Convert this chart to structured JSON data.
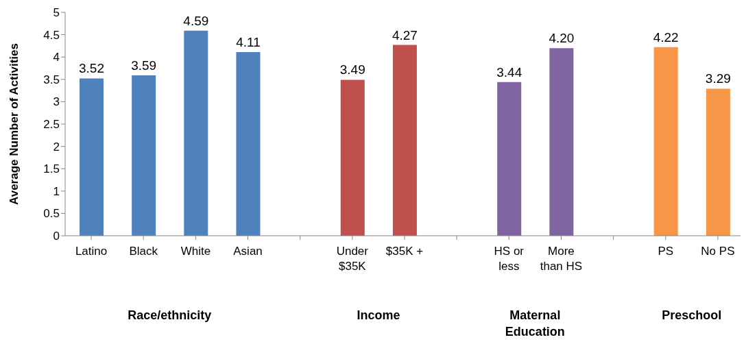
{
  "chart_data": {
    "type": "bar",
    "ylabel": "Average Number of Activities",
    "categories": [
      "Latino",
      "Black",
      "White",
      "Asian",
      null,
      "Under $35K",
      "$35K +",
      null,
      "HS or less",
      "More than HS",
      null,
      "PS",
      "No PS"
    ],
    "values": [
      3.52,
      3.59,
      4.59,
      4.11,
      null,
      3.49,
      4.27,
      null,
      3.44,
      4.2,
      null,
      4.22,
      3.29
    ],
    "value_labels": [
      "3.52",
      "3.59",
      "4.59",
      "4.11",
      null,
      "3.49",
      "4.27",
      null,
      "3.44",
      "4.20",
      null,
      "4.22",
      "3.29"
    ],
    "colors": [
      "#4f81bd",
      "#4f81bd",
      "#4f81bd",
      "#4f81bd",
      "#4f81bd",
      "#c0504d",
      "#c0504d",
      "#c0504d",
      "#8064a2",
      "#8064a2",
      "#8064a2",
      "#f79646",
      "#f79646"
    ],
    "ylim": [
      0,
      5
    ],
    "yticks": [
      0,
      0.5,
      1,
      1.5,
      2,
      2.5,
      3,
      3.5,
      4,
      4.5,
      5
    ],
    "annotations": [
      "Race/ethnicity",
      "Income",
      "Maternal Education",
      "Preschool"
    ],
    "grid": false,
    "legend": false
  }
}
